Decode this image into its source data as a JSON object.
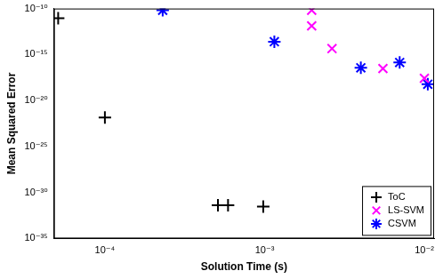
{
  "chart_data": {
    "type": "scatter",
    "x_label": "Solution Time (s)",
    "y_label": "Mean Squared Error",
    "log": true,
    "grid": false,
    "legend": "lower-right",
    "xlim": [
      4.8e-05,
      0.0115
    ],
    "ylim": [
      1e-35,
      1e-10
    ],
    "xticks": [
      {
        "value": 0.0001,
        "label": "10⁻⁴"
      },
      {
        "value": 0.001,
        "label": "10⁻³"
      },
      {
        "value": 0.01,
        "label": "10⁻²"
      }
    ],
    "yticks": [
      {
        "value": 1e-35,
        "label": "10⁻³⁵"
      },
      {
        "value": 1e-30,
        "label": "10⁻³⁰"
      },
      {
        "value": 1e-25,
        "label": "10⁻²⁵"
      },
      {
        "value": 1e-20,
        "label": "10⁻²⁰"
      },
      {
        "value": 1e-15,
        "label": "10⁻¹⁵"
      },
      {
        "value": 1e-10,
        "label": "10⁻¹⁰"
      }
    ],
    "series": [
      {
        "name": "ToC",
        "color": "#000000",
        "marker": "plus",
        "x": [
          5.1e-05,
          0.0001,
          0.00051,
          0.00059,
          0.00098
        ],
        "values": [
          9e-12,
          1.4e-22,
          4e-32,
          4e-32,
          3e-32
        ]
      },
      {
        "name": "LS-SVM",
        "color": "#ff00ff",
        "marker": "x",
        "x": [
          0.00197,
          0.00197,
          0.00264,
          0.0055,
          0.01
        ],
        "values": [
          6.5e-11,
          1.3e-12,
          4.4e-15,
          3e-17,
          2.6e-18
        ]
      },
      {
        "name": "CSVM",
        "color": "#0000ff",
        "marker": "star",
        "x": [
          0.00023,
          0.00115,
          0.004,
          0.007,
          0.0105
        ],
        "values": [
          6.5e-11,
          2.5e-14,
          3.6e-17,
          1.35e-16,
          5.8e-19
        ]
      }
    ]
  }
}
